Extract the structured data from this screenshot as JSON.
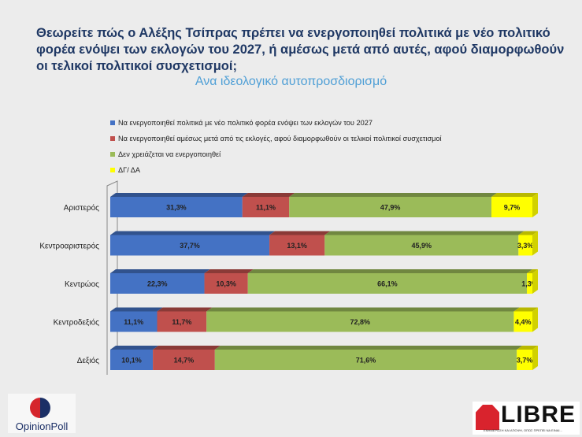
{
  "title_lines": [
    "Θεωρείτε πώς ο Αλέξης Τσίπρας πρέπει να ενεργοποιηθεί πολιτικά με νέο πολιτικό",
    "φορέα ενόψει των εκλογών του 2027, ή αμέσως μετά από αυτές, αφού διαμορφωθούν",
    "οι τελικοί πολιτικοί συσχετισμοί;"
  ],
  "subtitle": "Ανα ιδεολογικό αυτοπροσδιορισμό",
  "legend": [
    {
      "label": "Να ενεργοποιηθεί πολιτικά με νέο πολιτικό φορέα ενόψει των εκλογών του 2027",
      "color": "#4472c4"
    },
    {
      "label": "Να ενεργοποιηθεί αμέσως μετά από τις εκλογές, αφού διαμορφωθούν οι τελικοί πολιτικοί συσχετισμοί",
      "color": "#c0504d"
    },
    {
      "label": "Δεν χρειάζεται να ενεργοποιηθεί",
      "color": "#9bbb59"
    },
    {
      "label": "ΔΓ/ ΔΑ",
      "color": "#ffff00"
    }
  ],
  "chart_data": {
    "type": "bar",
    "orientation": "horizontal",
    "stacked": true,
    "percent": true,
    "title": "Θεωρείτε πώς ο Αλέξης Τσίπρας πρέπει να ενεργοποιηθεί πολιτικά με νέο πολιτικό φορέα ενόψει των εκλογών του 2027, ή αμέσως μετά από αυτές, αφού διαμορφωθούν οι τελικοί πολιτικοί συσχετισμοί;",
    "subtitle": "Ανα ιδεολογικό αυτοπροσδιορισμό",
    "categories": [
      "Αριστερός",
      "Κεντροαριστερός",
      "Κεντρώος",
      "Κεντροδεξιός",
      "Δεξιός"
    ],
    "series": [
      {
        "name": "Να ενεργοποιηθεί πολιτικά με νέο πολιτικό φορέα ενόψει των εκλογών του 2027",
        "values": [
          31.3,
          37.7,
          22.3,
          11.1,
          10.1
        ],
        "color": "#4472c4"
      },
      {
        "name": "Να ενεργοποιηθεί αμέσως μετά από τις εκλογές, αφού διαμορφωθούν οι τελικοί πολιτικοί συσχετισμοί",
        "values": [
          11.1,
          13.1,
          10.3,
          11.7,
          14.7
        ],
        "color": "#c0504d"
      },
      {
        "name": "Δεν χρειάζεται να ενεργοποιηθεί",
        "values": [
          47.9,
          45.9,
          66.1,
          72.8,
          71.6
        ],
        "color": "#9bbb59"
      },
      {
        "name": "ΔΓ/ ΔΑ",
        "values": [
          9.7,
          3.3,
          1.3,
          4.4,
          3.7
        ],
        "color": "#ffff00"
      }
    ],
    "data_labels": [
      [
        "31,3%",
        "37,7%",
        "22,3%",
        "11,1%",
        "10,1%"
      ],
      [
        "11,1%",
        "13,1%",
        "10,3%",
        "11,7%",
        "14,7%"
      ],
      [
        "47,9%",
        "45,9%",
        "66,1%",
        "72,8%",
        "71,6%"
      ],
      [
        "9,7%",
        "3,3%",
        "1,3%",
        "4,4%",
        "3,7%"
      ]
    ],
    "legend_position": "top",
    "grid": false
  },
  "logos": {
    "opinion_poll": "OpinionPoll",
    "libre_word": "LIBRE",
    "libre_tagline": "ΕΝΗΜΕΡΩΣΗ ΚΑΙ ΑΠΟΨΗ, ΟΠΩΣ ΠΡΕΠΕΙ ΝΑ ΕΙΝΑΙ..."
  }
}
